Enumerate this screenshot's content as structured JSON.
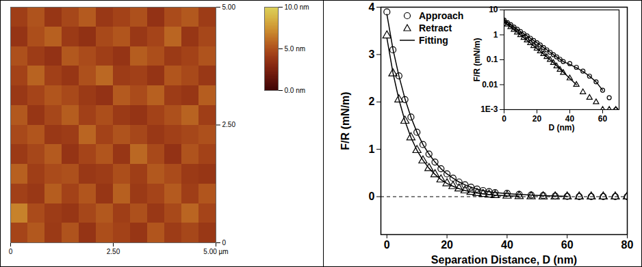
{
  "chart_data": [
    {
      "type": "heatmap",
      "xlim": [
        0,
        5
      ],
      "ylim": [
        0,
        5
      ],
      "xticks": [
        0,
        {
          "value": 2.5,
          "label": "2.50"
        },
        {
          "value": 5,
          "label": "5.00 µm"
        }
      ],
      "yticks": [
        0,
        {
          "value": 2.5,
          "label": "2.50"
        },
        {
          "value": 5,
          "label": "5.00"
        }
      ],
      "heights": [
        [
          4.2,
          5.1,
          3.8,
          4.6,
          5.4,
          3.9,
          4.4,
          5.0,
          3.6,
          4.8,
          5.3,
          4.1
        ],
        [
          3.7,
          4.9,
          5.6,
          4.0,
          3.5,
          4.7,
          5.2,
          3.9,
          4.5,
          5.8,
          3.8,
          4.6
        ],
        [
          5.0,
          4.1,
          3.6,
          5.3,
          4.8,
          4.2,
          3.7,
          5.5,
          4.9,
          4.0,
          4.4,
          5.1
        ],
        [
          4.4,
          5.7,
          4.3,
          3.8,
          5.0,
          5.9,
          4.1,
          4.3,
          3.7,
          5.2,
          4.7,
          3.9
        ],
        [
          3.9,
          4.5,
          5.2,
          4.7,
          4.0,
          3.6,
          5.4,
          4.8,
          5.6,
          4.1,
          3.8,
          5.5
        ],
        [
          5.3,
          3.8,
          4.6,
          5.5,
          4.3,
          4.9,
          4.0,
          3.7,
          4.4,
          5.0,
          5.7,
          4.2
        ],
        [
          4.7,
          5.2,
          3.9,
          4.1,
          5.8,
          4.4,
          5.1,
          4.6,
          3.9,
          4.3,
          4.6,
          5.0
        ],
        [
          4.0,
          4.6,
          5.4,
          3.7,
          4.5,
          5.2,
          3.8,
          5.9,
          4.7,
          3.6,
          5.1,
          4.4
        ],
        [
          5.6,
          4.2,
          4.8,
          5.0,
          3.9,
          4.1,
          4.9,
          4.2,
          5.3,
          4.8,
          4.0,
          3.8
        ],
        [
          4.3,
          3.9,
          5.5,
          4.4,
          5.2,
          3.8,
          5.6,
          4.0,
          4.5,
          5.4,
          4.2,
          5.2
        ],
        [
          6.8,
          4.8,
          4.1,
          3.8,
          4.6,
          5.3,
          4.2,
          5.0,
          3.9,
          4.7,
          5.8,
          4.5
        ],
        [
          4.5,
          5.3,
          4.0,
          5.1,
          3.7,
          4.9,
          4.4,
          3.8,
          5.2,
          4.1,
          4.6,
          3.9
        ]
      ],
      "colorbar": {
        "range": [
          0,
          10
        ],
        "ticks": [
          {
            "value": 0,
            "label": "0.0 nm"
          },
          {
            "value": 5,
            "label": "5.0 nm"
          },
          {
            "value": 10,
            "label": "10.0 nm"
          }
        ]
      }
    },
    {
      "type": "scatter",
      "xlabel": "Separation Distance, D (nm)",
      "ylabel": "F/R (mN/m)",
      "xlim": [
        -2,
        80
      ],
      "ylim": [
        -0.8,
        4
      ],
      "xticks": [
        0,
        20,
        40,
        60,
        80
      ],
      "yticks": [
        0,
        1,
        2,
        3,
        4
      ],
      "legend": "top-left",
      "reference_line": 0,
      "x": [
        0,
        2,
        4,
        6,
        8,
        10,
        12,
        14,
        16,
        18,
        20,
        22,
        24,
        26,
        28,
        30,
        32,
        34,
        36,
        40,
        44,
        48,
        52,
        56,
        60,
        64,
        68,
        72,
        76,
        80
      ],
      "series": [
        {
          "name": "Approach",
          "type": "scatter",
          "marker": "circle",
          "color": "#000000",
          "values": [
            3.9,
            3.1,
            2.55,
            2.05,
            1.68,
            1.36,
            1.1,
            0.9,
            0.73,
            0.59,
            0.48,
            0.39,
            0.31,
            0.25,
            0.2,
            0.16,
            0.13,
            0.105,
            0.085,
            0.07,
            0.05,
            0.035,
            0.022,
            0.013,
            0.006,
            0.003,
            0.001,
            0.001,
            0.001,
            0.001
          ]
        },
        {
          "name": "Retract",
          "type": "scatter",
          "marker": "triangle",
          "color": "#000000",
          "values": [
            3.4,
            2.6,
            2.05,
            1.6,
            1.25,
            0.98,
            0.76,
            0.6,
            0.47,
            0.36,
            0.28,
            0.22,
            0.17,
            0.13,
            0.1,
            0.075,
            0.055,
            0.04,
            0.03,
            0.018,
            0.01,
            0.005,
            0.003,
            0.002,
            0.001,
            0.001,
            0.001,
            0.001,
            0.001,
            0.001
          ]
        },
        {
          "name": "Fitting",
          "type": "line",
          "line_style": "solid",
          "color": "#000000",
          "values": [
            3.85,
            3.12,
            2.55,
            2.07,
            1.68,
            1.36,
            1.1,
            0.9,
            0.73,
            0.59,
            0.48,
            0.39,
            0.31,
            0.25,
            0.2,
            0.16,
            0.13,
            0.105,
            0.085,
            0.065,
            0.048,
            0.034,
            0.022,
            0.013,
            0.006,
            null,
            null,
            null,
            null,
            null
          ]
        },
        {
          "name": "Fitting",
          "type": "line",
          "line_style": "solid",
          "color": "#000000",
          "values": [
            3.35,
            2.62,
            2.05,
            1.6,
            1.25,
            0.98,
            0.77,
            0.6,
            0.47,
            0.36,
            0.28,
            0.22,
            0.17,
            0.13,
            0.1,
            0.077,
            0.058,
            0.043,
            0.032,
            0.018,
            0.01,
            null,
            null,
            null,
            null,
            null,
            null,
            null,
            null,
            null
          ]
        }
      ]
    },
    {
      "type": "scatter",
      "xlabel": "D (nm)",
      "ylabel": "F/R (mN/m)",
      "xlim": [
        0,
        70
      ],
      "ylim": [
        0.001,
        10
      ],
      "log": "y",
      "xticks": [
        0,
        20,
        40,
        60
      ],
      "yticks": [
        {
          "value": 0.001,
          "label": "1E-3"
        },
        0.01,
        0.1,
        1,
        10
      ],
      "x": [
        0,
        2,
        4,
        6,
        8,
        10,
        12,
        14,
        16,
        18,
        20,
        22,
        24,
        26,
        28,
        30,
        32,
        34,
        36,
        40,
        44,
        48,
        52,
        56,
        60,
        64,
        68,
        72,
        76,
        80
      ],
      "series": [
        {
          "name": "Approach",
          "type": "scatter",
          "marker": "circle",
          "color": "#000000",
          "values": [
            3.9,
            3.1,
            2.55,
            2.05,
            1.68,
            1.36,
            1.1,
            0.9,
            0.73,
            0.59,
            0.48,
            0.39,
            0.31,
            0.25,
            0.2,
            0.16,
            0.13,
            0.105,
            0.085,
            0.07,
            0.05,
            0.035,
            0.022,
            0.013,
            0.006,
            0.003,
            0.001,
            0.001,
            0.001,
            0.001
          ]
        },
        {
          "name": "Retract",
          "type": "scatter",
          "marker": "triangle",
          "color": "#000000",
          "values": [
            3.4,
            2.6,
            2.05,
            1.6,
            1.25,
            0.98,
            0.76,
            0.6,
            0.47,
            0.36,
            0.28,
            0.22,
            0.17,
            0.13,
            0.1,
            0.075,
            0.055,
            0.04,
            0.03,
            0.018,
            0.01,
            0.005,
            0.003,
            0.002,
            0.001,
            0.001,
            0.001,
            0.001,
            0.001,
            0.001
          ]
        },
        {
          "name": "Fitting",
          "type": "line",
          "line_style": "solid",
          "color": "#000000",
          "values": [
            3.85,
            3.12,
            2.55,
            2.07,
            1.68,
            1.36,
            1.1,
            0.9,
            0.73,
            0.59,
            0.48,
            0.39,
            0.31,
            0.25,
            0.2,
            0.16,
            0.13,
            0.105,
            0.085,
            0.065,
            0.048,
            0.034,
            0.022,
            0.013,
            0.006,
            null,
            null,
            null,
            null,
            null
          ]
        },
        {
          "name": "Fitting",
          "type": "line",
          "line_style": "solid",
          "color": "#000000",
          "values": [
            3.35,
            2.62,
            2.05,
            1.6,
            1.25,
            0.98,
            0.77,
            0.6,
            0.47,
            0.36,
            0.28,
            0.22,
            0.17,
            0.13,
            0.1,
            0.077,
            0.058,
            0.043,
            0.032,
            0.018,
            0.01,
            null,
            null,
            null,
            null,
            null,
            null,
            null,
            null,
            null
          ]
        }
      ]
    }
  ]
}
